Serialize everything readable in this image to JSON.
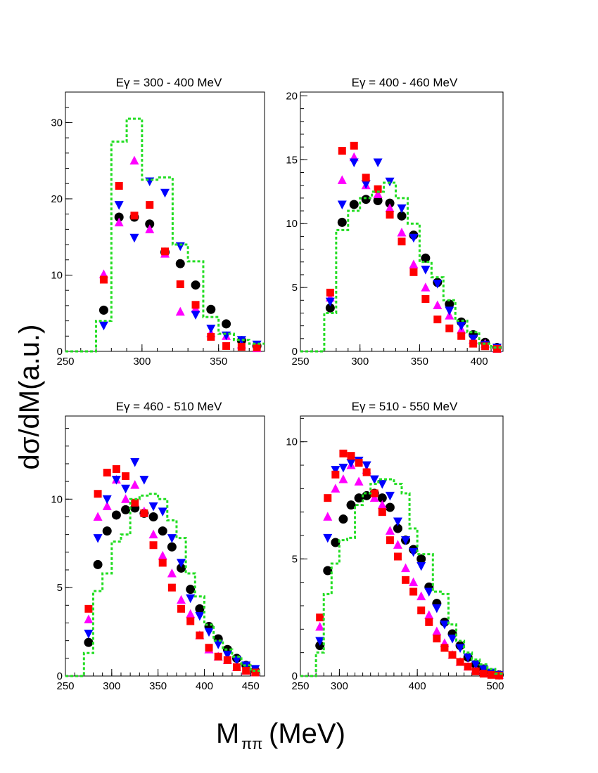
{
  "figure": {
    "ylabel": "dσ/dM(a.u.)",
    "xlabel_main": "M",
    "xlabel_sub": "ππ",
    "xlabel_unit": "(MeV)"
  },
  "colors": {
    "black_circles": "#000000",
    "magenta_triangles": "#ff00ff",
    "blue_triangles": "#0000ff",
    "red_squares": "#ff0000",
    "green_histogram": "#22dd22"
  },
  "chart_data": [
    {
      "type": "scatter",
      "title": "Eγ = 300 - 400 MeV",
      "xlim": [
        250,
        380
      ],
      "ylim": [
        0,
        34
      ],
      "xticks": [
        250,
        300,
        350
      ],
      "yticks": [
        0,
        10,
        20,
        30
      ],
      "grid": false,
      "series": [
        {
          "marker": "circle",
          "color": "#000000",
          "x": [
            275,
            285,
            295,
            305,
            315,
            325,
            335,
            345,
            355,
            365,
            375
          ],
          "y": [
            5.4,
            17.6,
            17.6,
            16.7,
            13.0,
            11.5,
            8.7,
            5.5,
            3.6,
            1.4,
            0.7
          ]
        },
        {
          "marker": "triangle-up",
          "color": "#ff00ff",
          "x": [
            275,
            285,
            295,
            305,
            315,
            325,
            335,
            345,
            355,
            365,
            375
          ],
          "y": [
            10.1,
            16.9,
            25.0,
            16.0,
            12.8,
            5.2,
            5.6,
            2.4,
            2.0,
            0.9,
            0.4
          ]
        },
        {
          "marker": "triangle-down",
          "color": "#0000ff",
          "x": [
            275,
            285,
            295,
            305,
            315,
            325,
            335,
            345,
            355,
            365,
            375
          ],
          "y": [
            3.4,
            19.2,
            14.9,
            22.3,
            20.8,
            13.8,
            4.8,
            3.0,
            2.1,
            1.5,
            0.9
          ]
        },
        {
          "marker": "square",
          "color": "#ff0000",
          "x": [
            275,
            285,
            295,
            305,
            315,
            325,
            335,
            345,
            355,
            365,
            375
          ],
          "y": [
            9.4,
            21.7,
            17.8,
            19.2,
            13.1,
            8.8,
            6.1,
            1.9,
            0.7,
            0.6,
            0.5
          ]
        },
        {
          "type": "step",
          "style": "dashed",
          "color": "#22dd22",
          "edges": [
            250,
            270,
            280,
            290,
            300,
            310,
            320,
            330,
            340,
            350,
            360,
            370,
            380
          ],
          "values": [
            0,
            4.0,
            27.5,
            30.5,
            22.5,
            22.8,
            14.0,
            11.8,
            4.5,
            2.3,
            1.5,
            1.0
          ]
        }
      ]
    },
    {
      "type": "scatter",
      "title": "Eγ = 400 - 460 MeV",
      "xlim": [
        250,
        420
      ],
      "ylim": [
        0,
        20.3
      ],
      "xticks": [
        250,
        300,
        350,
        400
      ],
      "yticks": [
        0,
        5,
        10,
        15,
        20
      ],
      "grid": false,
      "series": [
        {
          "marker": "circle",
          "color": "#000000",
          "x": [
            275,
            285,
            295,
            305,
            315,
            325,
            335,
            345,
            355,
            365,
            375,
            385,
            395,
            405,
            415
          ],
          "y": [
            3.4,
            10.1,
            11.5,
            11.9,
            11.8,
            11.6,
            10.6,
            9.1,
            7.3,
            5.4,
            3.7,
            2.3,
            1.3,
            0.7,
            0.3
          ]
        },
        {
          "marker": "triangle-up",
          "color": "#ff00ff",
          "x": [
            275,
            285,
            295,
            305,
            315,
            325,
            335,
            345,
            355,
            365,
            375,
            385,
            395,
            405,
            415
          ],
          "y": [
            4.2,
            13.4,
            15.2,
            13.0,
            12.3,
            11.2,
            9.3,
            6.8,
            5.0,
            3.6,
            2.8,
            1.7,
            0.9,
            0.6,
            0.2
          ]
        },
        {
          "marker": "triangle-down",
          "color": "#0000ff",
          "x": [
            275,
            285,
            295,
            305,
            315,
            325,
            335,
            345,
            355,
            365,
            375,
            385,
            395,
            405,
            415
          ],
          "y": [
            3.9,
            11.5,
            14.8,
            13.1,
            14.8,
            13.3,
            11.2,
            8.9,
            6.4,
            5.3,
            3.2,
            2.0,
            1.0,
            0.5,
            0.3
          ]
        },
        {
          "marker": "square",
          "color": "#ff0000",
          "x": [
            275,
            285,
            295,
            305,
            315,
            325,
            335,
            345,
            355,
            365,
            375,
            385,
            395,
            405,
            415
          ],
          "y": [
            4.6,
            15.7,
            16.1,
            13.6,
            12.7,
            10.7,
            8.6,
            6.2,
            4.1,
            2.5,
            1.8,
            1.2,
            0.6,
            0.4,
            0.2
          ]
        },
        {
          "type": "step",
          "style": "dashed",
          "color": "#22dd22",
          "edges": [
            250,
            270,
            280,
            290,
            300,
            310,
            320,
            330,
            340,
            350,
            360,
            370,
            380,
            390,
            400,
            410,
            420
          ],
          "values": [
            0,
            3.0,
            9.5,
            11.0,
            12.0,
            12.5,
            13.2,
            12.0,
            10.0,
            7.0,
            5.8,
            4.0,
            2.4,
            1.5,
            0.6,
            0.3
          ]
        }
      ]
    },
    {
      "type": "scatter",
      "title": "Eγ = 460 - 510 MeV",
      "xlim": [
        250,
        465
      ],
      "ylim": [
        0,
        14.7
      ],
      "xticks": [
        250,
        300,
        350,
        400,
        450
      ],
      "yticks": [
        0,
        5,
        10
      ],
      "grid": false,
      "series": [
        {
          "marker": "circle",
          "color": "#000000",
          "x": [
            275,
            285,
            295,
            305,
            315,
            325,
            335,
            345,
            355,
            365,
            375,
            385,
            395,
            405,
            415,
            425,
            435,
            445,
            455
          ],
          "y": [
            1.9,
            6.3,
            8.2,
            9.1,
            9.4,
            9.5,
            9.2,
            9.0,
            8.2,
            7.3,
            6.1,
            4.9,
            3.8,
            2.8,
            2.1,
            1.5,
            1.0,
            0.6,
            0.3
          ]
        },
        {
          "marker": "triangle-up",
          "color": "#ff00ff",
          "x": [
            275,
            285,
            295,
            305,
            315,
            325,
            335,
            345,
            355,
            365,
            375,
            385,
            395,
            405,
            415,
            425,
            435,
            445,
            455
          ],
          "y": [
            3.2,
            9.0,
            9.6,
            11.1,
            10.0,
            10.8,
            9.3,
            8.0,
            6.8,
            5.8,
            4.3,
            3.5,
            2.3,
            1.5,
            1.1,
            0.9,
            0.5,
            0.3,
            0.2
          ]
        },
        {
          "marker": "triangle-down",
          "color": "#0000ff",
          "x": [
            275,
            285,
            295,
            305,
            315,
            325,
            335,
            345,
            355,
            365,
            375,
            385,
            395,
            405,
            415,
            425,
            435,
            445,
            455
          ],
          "y": [
            2.4,
            7.8,
            10.0,
            11.1,
            10.6,
            12.1,
            11.1,
            9.6,
            9.3,
            7.8,
            6.4,
            4.4,
            3.4,
            2.5,
            1.8,
            1.2,
            0.9,
            0.6,
            0.4
          ]
        },
        {
          "marker": "square",
          "color": "#ff0000",
          "x": [
            275,
            285,
            295,
            305,
            315,
            325,
            335,
            345,
            355,
            365,
            375,
            385,
            395,
            405,
            415,
            425,
            435,
            445,
            455
          ],
          "y": [
            3.8,
            10.3,
            11.5,
            11.7,
            11.3,
            9.8,
            9.2,
            7.4,
            6.4,
            5.0,
            3.8,
            3.1,
            2.3,
            1.6,
            1.1,
            0.9,
            0.5,
            0.3,
            0.2
          ]
        },
        {
          "type": "step",
          "style": "dashed",
          "color": "#22dd22",
          "edges": [
            250,
            270,
            280,
            290,
            300,
            310,
            320,
            330,
            340,
            350,
            360,
            370,
            380,
            390,
            400,
            410,
            420,
            430,
            440,
            450,
            460
          ],
          "values": [
            0,
            1.3,
            4.8,
            5.8,
            7.6,
            8.0,
            10.0,
            10.2,
            10.3,
            10.0,
            8.8,
            7.8,
            5.8,
            4.5,
            2.9,
            2.0,
            1.5,
            1.1,
            0.6,
            0.3
          ]
        }
      ]
    },
    {
      "type": "scatter",
      "title": "Eγ = 510 - 550 MeV",
      "xlim": [
        250,
        510
      ],
      "ylim": [
        0,
        11.1
      ],
      "xticks": [
        250,
        300,
        400,
        500
      ],
      "yticks": [
        0,
        5,
        10
      ],
      "grid": false,
      "series": [
        {
          "marker": "circle",
          "color": "#000000",
          "x": [
            275,
            285,
            295,
            305,
            315,
            325,
            335,
            345,
            355,
            365,
            375,
            385,
            395,
            405,
            415,
            425,
            435,
            445,
            455,
            465,
            475,
            485,
            495,
            505
          ],
          "y": [
            1.3,
            4.5,
            5.7,
            6.7,
            7.3,
            7.6,
            7.7,
            7.8,
            7.6,
            7.2,
            6.3,
            5.8,
            5.4,
            5.0,
            3.8,
            3.1,
            2.3,
            1.8,
            1.3,
            0.8,
            0.5,
            0.3,
            0.1,
            0.05
          ]
        },
        {
          "marker": "triangle-up",
          "color": "#ff00ff",
          "x": [
            275,
            285,
            295,
            305,
            315,
            325,
            335,
            345,
            355,
            365,
            375,
            385,
            395,
            405,
            415,
            425,
            435,
            445,
            455,
            465,
            475,
            485,
            495,
            505
          ],
          "y": [
            2.1,
            6.8,
            8.0,
            8.4,
            9.0,
            8.3,
            8.8,
            7.6,
            7.3,
            6.2,
            5.6,
            4.6,
            4.0,
            3.4,
            2.6,
            1.9,
            1.4,
            0.9,
            0.6,
            0.4,
            0.3,
            0.2,
            0.1,
            0.05
          ]
        },
        {
          "marker": "triangle-down",
          "color": "#0000ff",
          "x": [
            275,
            285,
            295,
            305,
            315,
            325,
            335,
            345,
            355,
            365,
            375,
            385,
            395,
            405,
            415,
            425,
            435,
            445,
            455,
            465,
            475,
            485,
            495,
            505
          ],
          "y": [
            1.5,
            5.9,
            8.8,
            8.9,
            9.1,
            9.2,
            9.0,
            8.4,
            8.2,
            7.7,
            6.6,
            5.8,
            5.3,
            4.7,
            3.6,
            2.9,
            2.2,
            1.6,
            1.2,
            0.8,
            0.5,
            0.3,
            0.15,
            0.05
          ]
        },
        {
          "marker": "square",
          "color": "#ff0000",
          "x": [
            275,
            285,
            295,
            305,
            315,
            325,
            335,
            345,
            355,
            365,
            375,
            385,
            395,
            405,
            415,
            425,
            435,
            445,
            455,
            465,
            475,
            485,
            495,
            505
          ],
          "y": [
            2.5,
            7.6,
            8.6,
            9.5,
            9.4,
            9.1,
            8.7,
            7.8,
            7.0,
            5.8,
            5.1,
            4.1,
            3.6,
            2.8,
            2.3,
            1.6,
            1.2,
            0.9,
            0.6,
            0.4,
            0.2,
            0.1,
            0.05,
            0.02
          ]
        },
        {
          "type": "step",
          "style": "dashed",
          "color": "#22dd22",
          "edges": [
            250,
            270,
            280,
            290,
            300,
            310,
            320,
            330,
            340,
            350,
            360,
            370,
            380,
            390,
            400,
            410,
            420,
            430,
            440,
            450,
            460,
            470,
            480,
            490,
            500,
            510
          ],
          "values": [
            0,
            1.0,
            3.5,
            4.8,
            5.8,
            5.9,
            7.3,
            7.8,
            8.2,
            8.4,
            8.4,
            8.2,
            7.8,
            6.3,
            5.2,
            5.2,
            3.6,
            3.5,
            2.2,
            1.5,
            1.0,
            0.7,
            0.5,
            0.3,
            0.1
          ]
        }
      ]
    }
  ]
}
